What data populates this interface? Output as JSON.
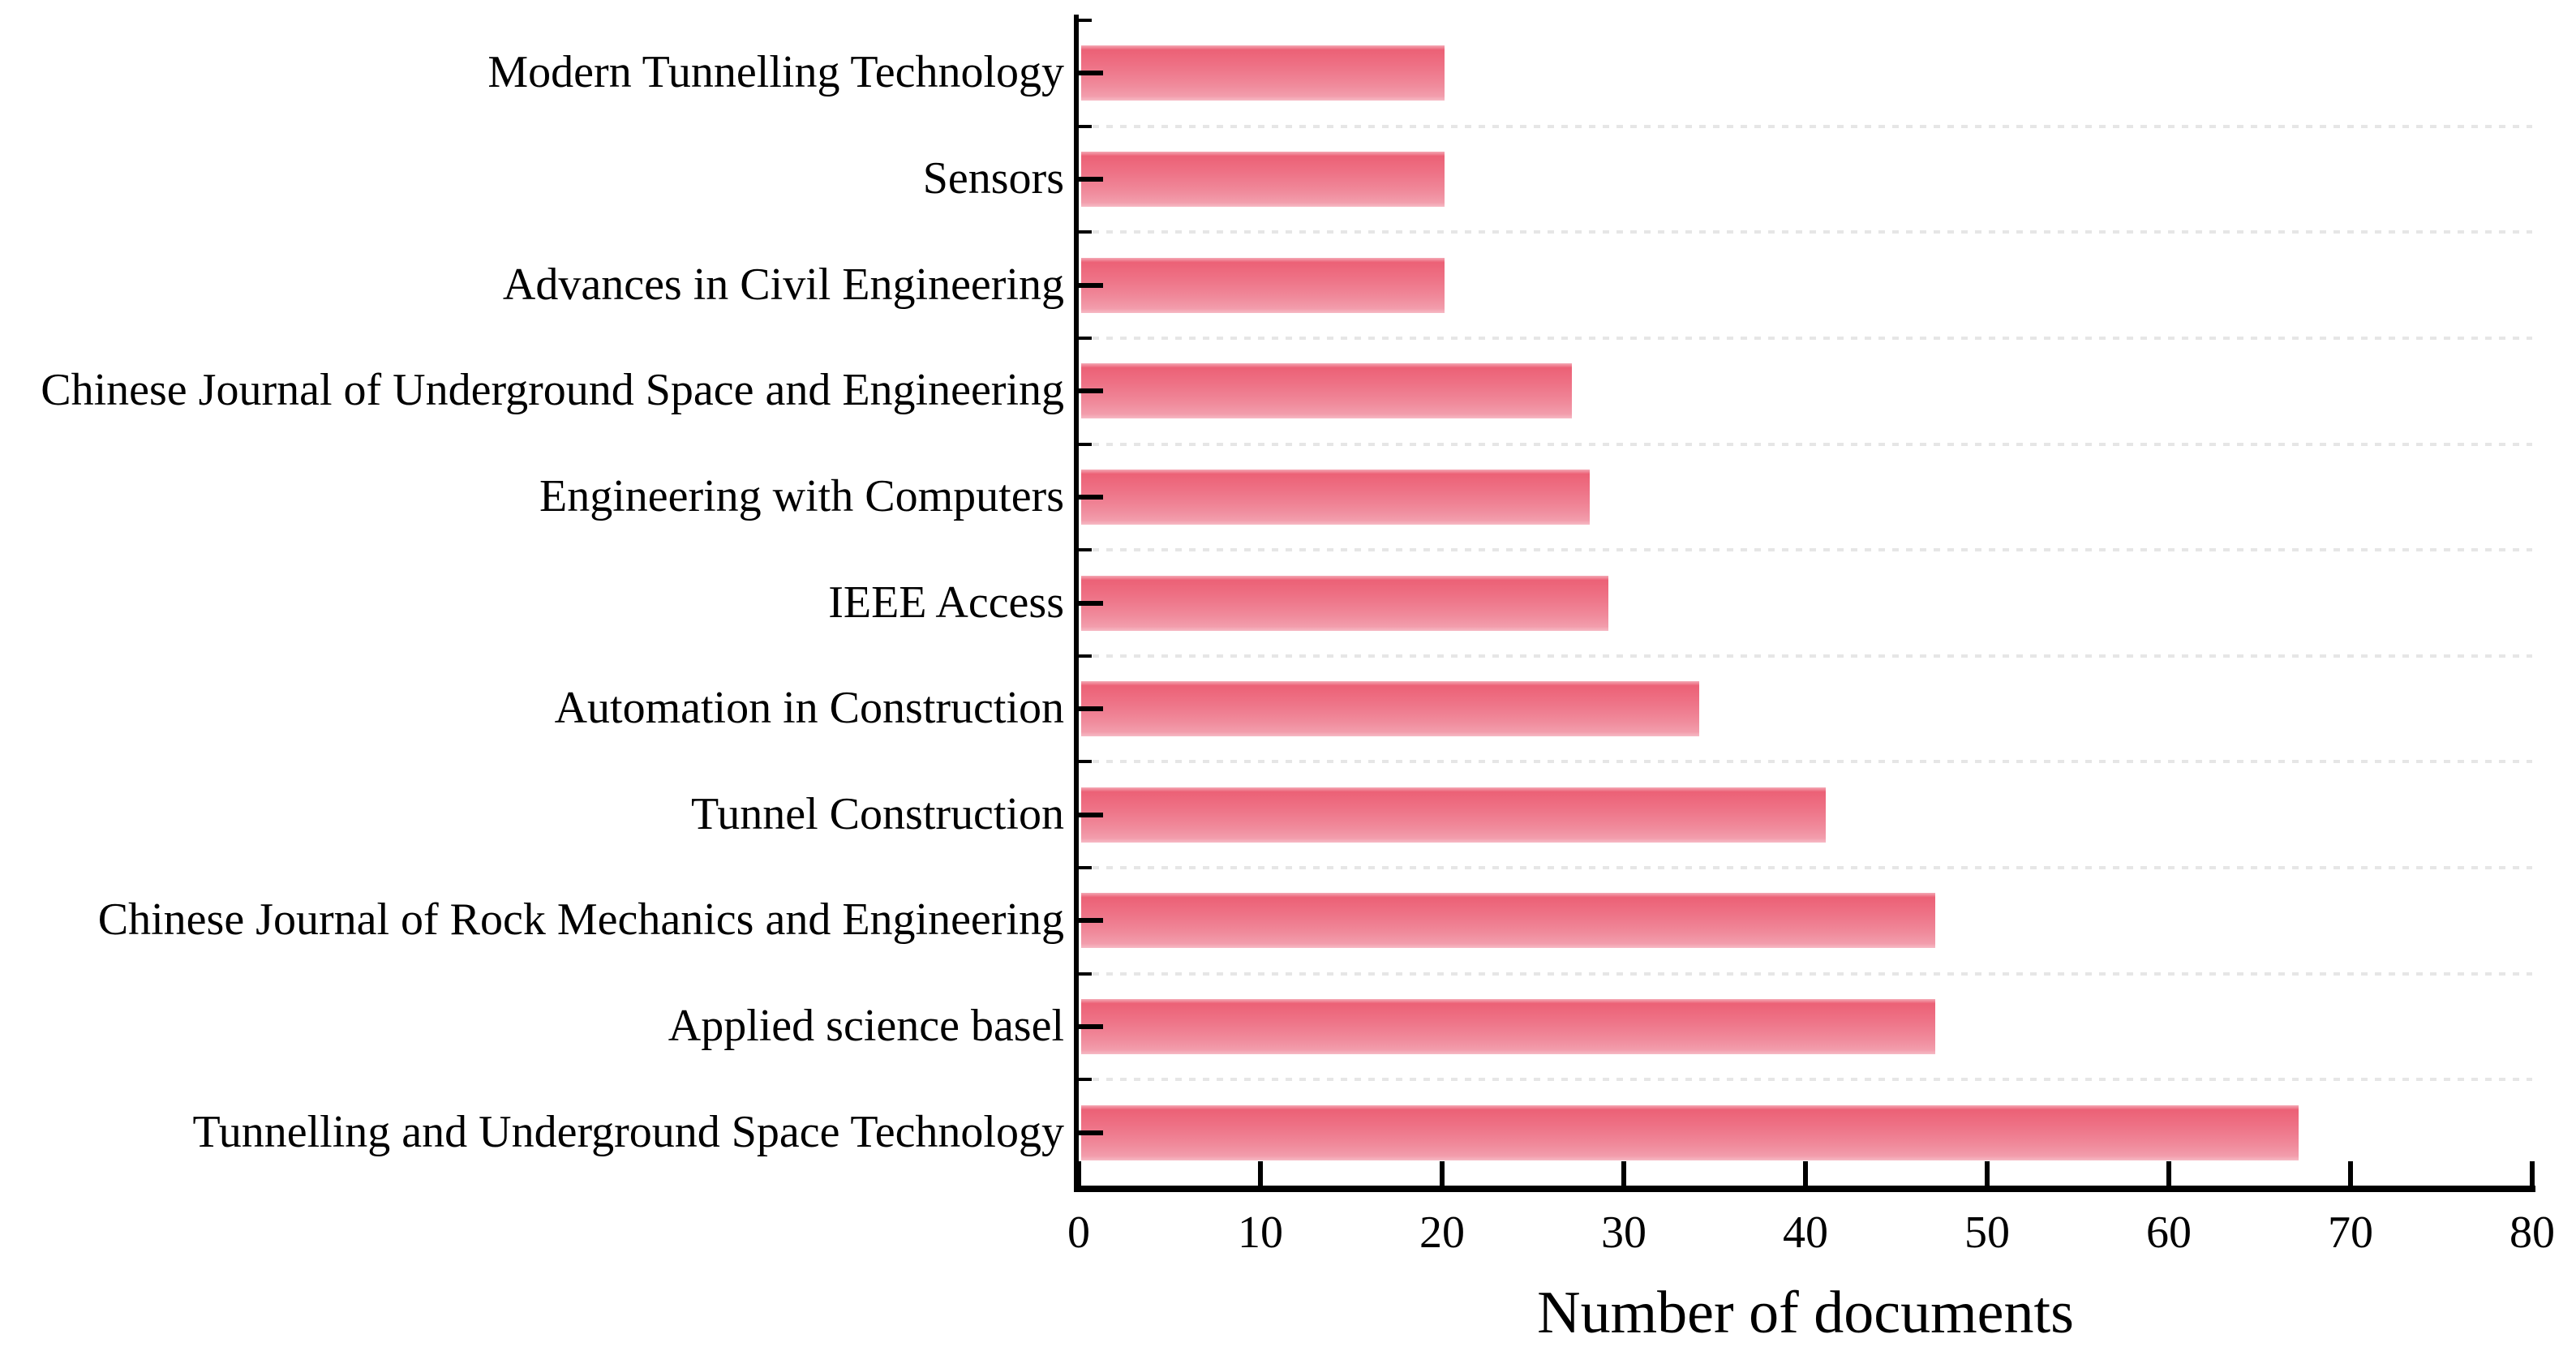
{
  "chart_data": {
    "type": "bar",
    "orientation": "horizontal",
    "title": "",
    "xlabel": "Number of documents",
    "ylabel": "",
    "categories": [
      "Modern Tunnelling Technology",
      "Sensors",
      "Advances in Civil Engineering",
      "Chinese Journal of Underground Space and Engineering",
      "Engineering with Computers",
      "IEEE Access",
      "Automation in Construction",
      "Tunnel Construction",
      "Chinese Journal of Rock Mechanics and Engineering",
      "Applied science basel",
      "Tunnelling and Underground Space Technology"
    ],
    "categories_order": "top-to-bottom as displayed",
    "values": [
      20,
      20,
      20,
      27,
      28,
      29,
      34,
      41,
      47,
      47,
      67
    ],
    "xlim": [
      0,
      80
    ],
    "xticks": [
      0,
      10,
      20,
      30,
      40,
      50,
      60,
      70,
      80
    ],
    "grid": "faint dotted horizontal gridlines at category band boundaries",
    "legend_position": "none",
    "colors": {
      "bar_gradient_top": "#ec6176",
      "bar_gradient_bottom": "#f29dac",
      "bar_edge_highlight": "#f6bac5",
      "axis": "#000000",
      "gridline": "#e6e6e6",
      "text": "#000000",
      "background": "#ffffff"
    }
  }
}
